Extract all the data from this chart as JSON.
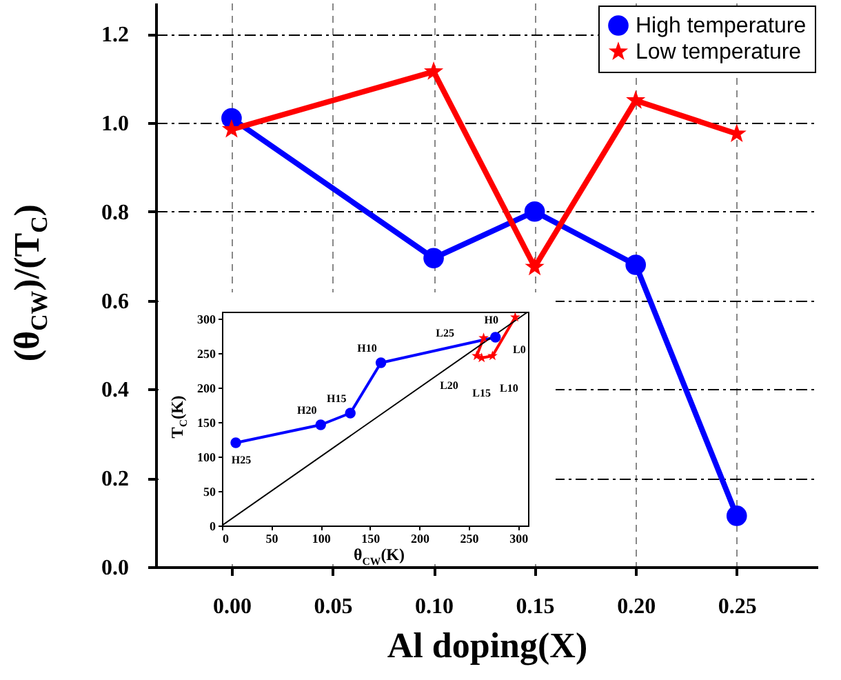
{
  "chart_data": [
    {
      "type": "line",
      "xlabel": "Al doping(X)",
      "ylabel": "(θ$_{CW}$)/(T$_{C}$)",
      "x": [
        0,
        0.1,
        0.15,
        0.2,
        0.25
      ],
      "series": [
        {
          "name": "High temperature",
          "color": "#0000ff",
          "marker": "circle",
          "values": [
            1.01,
            0.695,
            0.8,
            0.68,
            0.115
          ]
        },
        {
          "name": "Low temperature",
          "color": "#ff0000",
          "marker": "star",
          "values": [
            0.985,
            1.115,
            0.675,
            1.05,
            0.975
          ]
        }
      ],
      "xlim": [
        -0.0375,
        0.29
      ],
      "ylim": [
        0,
        1.27
      ],
      "xticks": [
        {
          "value": 0,
          "label": "0.00"
        },
        {
          "value": 0.05,
          "label": "0.05"
        },
        {
          "value": 0.1,
          "label": "0.10"
        },
        {
          "value": 0.15,
          "label": "0.15"
        },
        {
          "value": 0.2,
          "label": "0.20"
        },
        {
          "value": 0.25,
          "label": "0.25"
        }
      ],
      "yticks": [
        {
          "value": 0,
          "label": "0.0"
        },
        0.2,
        0.4,
        0.6,
        0.8,
        {
          "value": 1,
          "label": "1.0"
        },
        1.2
      ],
      "grid": true,
      "legend": "top right",
      "line_style": "solid"
    },
    {
      "type": "line",
      "xlabel": "θ$_{CW}$(K)",
      "ylabel": "T$_{C}$(K)",
      "series": [
        {
          "color": "#0000ff",
          "marker": "circle",
          "x": [
            14,
            100,
            130,
            161,
            277
          ],
          "values": [
            120,
            146,
            163,
            236,
            273
          ]
        },
        {
          "color": "#ff0000",
          "marker": "star",
          "x": [
            297,
            274,
            263,
            258,
            265
          ],
          "values": [
            302,
            246,
            243,
            246,
            272
          ]
        },
        {
          "color": "#000000",
          "marker": "none",
          "x": [
            0,
            310
          ],
          "values": [
            0,
            310
          ]
        }
      ],
      "annotations": [
        {
          "text": "H0",
          "x": 277,
          "y": 273
        },
        {
          "text": "H10",
          "x": 161,
          "y": 236
        },
        {
          "text": "H15",
          "x": 130,
          "y": 163
        },
        {
          "text": "H20",
          "x": 100,
          "y": 146
        },
        {
          "text": "H25",
          "x": 14,
          "y": 120
        },
        {
          "text": "L0",
          "x": 297,
          "y": 302
        },
        {
          "text": "L10",
          "x": 274,
          "y": 246
        },
        {
          "text": "L15",
          "x": 263,
          "y": 243
        },
        {
          "text": "L20",
          "x": 258,
          "y": 246
        },
        {
          "text": "L25",
          "x": 265,
          "y": 272
        }
      ],
      "xlim": [
        0,
        310
      ],
      "ylim": [
        0,
        310
      ],
      "xticks": [
        0,
        50,
        100,
        150,
        200,
        250,
        300
      ],
      "yticks": [
        0,
        50,
        100,
        150,
        200,
        250,
        300
      ],
      "grid": false,
      "legend": false,
      "line_style": "solid"
    }
  ]
}
